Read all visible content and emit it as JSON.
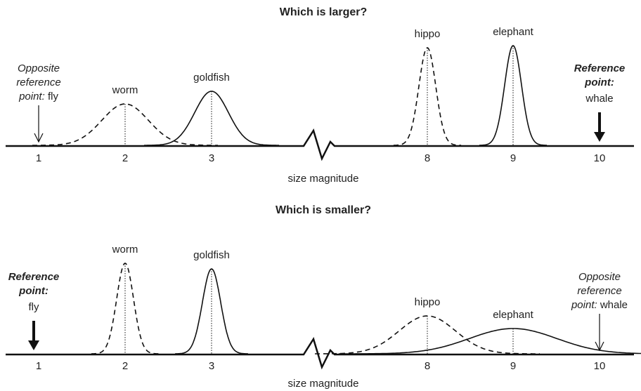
{
  "panels": [
    {
      "title": "Which is larger?",
      "axis_label": "size magnitude",
      "ticks": [
        1,
        2,
        3,
        8,
        9,
        10
      ],
      "curves": [
        "worm",
        "goldfish",
        "hippo",
        "elephant"
      ],
      "left": {
        "lines": [
          "Opposite",
          "reference"
        ],
        "key": "point:",
        "name": "fly"
      },
      "right": {
        "lines": [
          "Reference"
        ],
        "key": "point:",
        "name": "whale"
      }
    },
    {
      "title": "Which is smaller?",
      "axis_label": "size magnitude",
      "ticks": [
        1,
        2,
        3,
        8,
        9,
        10
      ],
      "curves": [
        "worm",
        "goldfish",
        "hippo",
        "elephant"
      ],
      "left": {
        "lines": [
          "Reference"
        ],
        "key": "point:",
        "name": "fly"
      },
      "right": {
        "lines": [
          "Opposite",
          "reference"
        ],
        "key": "point:",
        "name": "whale"
      }
    }
  ]
}
